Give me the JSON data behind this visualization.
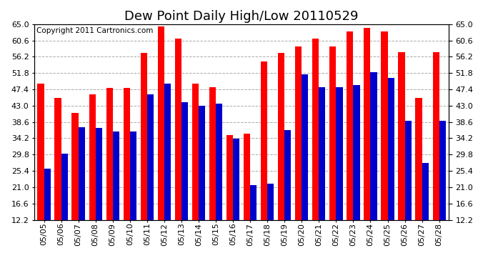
{
  "title": "Dew Point Daily High/Low 20110529",
  "copyright": "Copyright 2011 Cartronics.com",
  "dates": [
    "05/05",
    "05/06",
    "05/07",
    "05/08",
    "05/09",
    "05/10",
    "05/11",
    "05/12",
    "05/13",
    "05/14",
    "05/15",
    "05/16",
    "05/17",
    "05/18",
    "05/19",
    "05/20",
    "05/21",
    "05/22",
    "05/23",
    "05/24",
    "05/25",
    "05/26",
    "05/27",
    "05/28"
  ],
  "highs": [
    49.0,
    45.0,
    41.0,
    46.0,
    47.8,
    47.8,
    57.2,
    64.4,
    61.0,
    49.0,
    48.0,
    35.0,
    35.5,
    55.0,
    57.2,
    59.0,
    61.0,
    59.0,
    63.0,
    64.0,
    63.0,
    57.5,
    45.0,
    57.5
  ],
  "lows": [
    26.0,
    30.0,
    37.2,
    37.0,
    36.0,
    36.0,
    46.0,
    49.0,
    44.0,
    43.0,
    43.5,
    34.0,
    21.5,
    22.0,
    36.5,
    51.5,
    48.0,
    48.0,
    48.5,
    52.0,
    50.5,
    39.0,
    27.5,
    39.0
  ],
  "ylim_min": 12.2,
  "ylim_max": 65.0,
  "yticks": [
    12.2,
    16.6,
    21.0,
    25.4,
    29.8,
    34.2,
    38.6,
    43.0,
    47.4,
    51.8,
    56.2,
    60.6,
    65.0
  ],
  "high_color": "#ff0000",
  "low_color": "#0000cc",
  "bg_color": "#ffffff",
  "grid_color": "#aaaaaa",
  "bar_width": 0.38,
  "title_fontsize": 13,
  "tick_fontsize": 8,
  "copyright_fontsize": 7.5
}
